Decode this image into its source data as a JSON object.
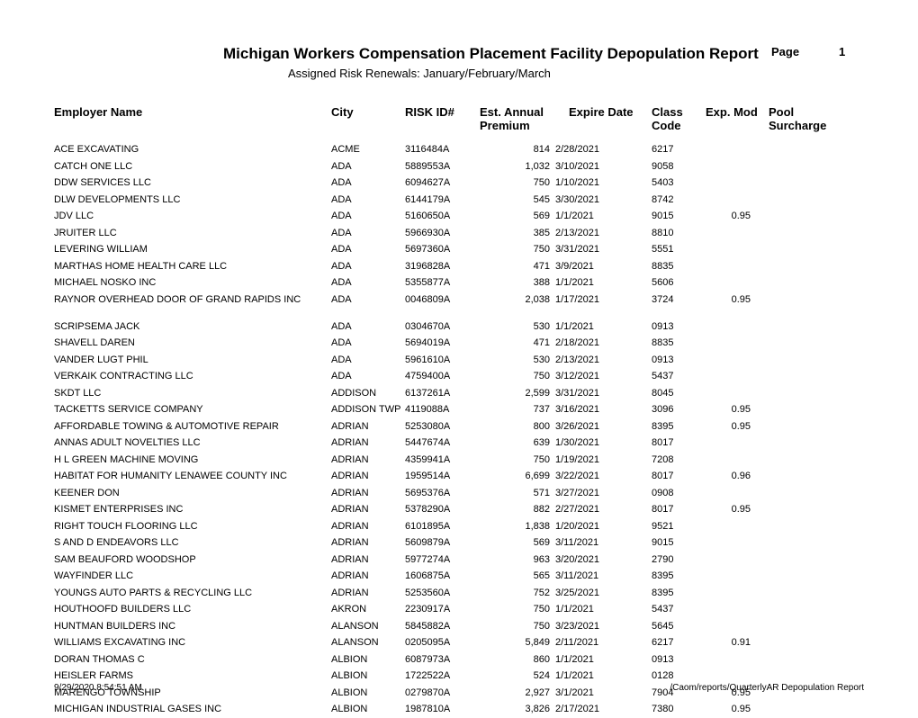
{
  "report": {
    "title": "Michigan Workers Compensation Placement Facility Depopulation Report",
    "subtitle": "Assigned Risk Renewals:  January/February/March",
    "page_label": "Page",
    "page_number": "1"
  },
  "columns": {
    "employer": "Employer Name",
    "city": "City",
    "riskid": "RISK ID#",
    "premium_l1": "Est. Annual",
    "premium_l2": "Premium",
    "expire": "Expire Date",
    "class_l1": "Class",
    "class_l2": "Code",
    "expmod": "Exp. Mod",
    "pool_l1": "Pool",
    "pool_l2": "Surcharge"
  },
  "rows": [
    {
      "employer": "ACE EXCAVATING",
      "city": "ACME",
      "riskid": "3116484A",
      "premium": "814",
      "expire": "2/28/2021",
      "class": "6217",
      "expmod": "",
      "pool": ""
    },
    {
      "employer": "CATCH ONE LLC",
      "city": "ADA",
      "riskid": "5889553A",
      "premium": "1,032",
      "expire": "3/10/2021",
      "class": "9058",
      "expmod": "",
      "pool": ""
    },
    {
      "employer": "DDW SERVICES LLC",
      "city": "ADA",
      "riskid": "6094627A",
      "premium": "750",
      "expire": "1/10/2021",
      "class": "5403",
      "expmod": "",
      "pool": ""
    },
    {
      "employer": "DLW DEVELOPMENTS LLC",
      "city": "ADA",
      "riskid": "6144179A",
      "premium": "545",
      "expire": "3/30/2021",
      "class": "8742",
      "expmod": "",
      "pool": ""
    },
    {
      "employer": "JDV LLC",
      "city": "ADA",
      "riskid": "5160650A",
      "premium": "569",
      "expire": "1/1/2021",
      "class": "9015",
      "expmod": "0.95",
      "pool": ""
    },
    {
      "employer": "JRUITER LLC",
      "city": "ADA",
      "riskid": "5966930A",
      "premium": "385",
      "expire": "2/13/2021",
      "class": "8810",
      "expmod": "",
      "pool": ""
    },
    {
      "employer": "LEVERING WILLIAM",
      "city": "ADA",
      "riskid": "5697360A",
      "premium": "750",
      "expire": "3/31/2021",
      "class": "5551",
      "expmod": "",
      "pool": ""
    },
    {
      "employer": "MARTHAS HOME HEALTH CARE LLC",
      "city": "ADA",
      "riskid": "3196828A",
      "premium": "471",
      "expire": "3/9/2021",
      "class": "8835",
      "expmod": "",
      "pool": ""
    },
    {
      "employer": "MICHAEL NOSKO INC",
      "city": "ADA",
      "riskid": "5355877A",
      "premium": "388",
      "expire": "1/1/2021",
      "class": "5606",
      "expmod": "",
      "pool": ""
    },
    {
      "employer": "RAYNOR OVERHEAD DOOR OF GRAND RAPIDS INC",
      "city": "ADA",
      "riskid": "0046809A",
      "premium": "2,038",
      "expire": "1/17/2021",
      "class": "3724",
      "expmod": "0.95",
      "pool": "",
      "tall": true
    },
    {
      "employer": "SCRIPSEMA JACK",
      "city": "ADA",
      "riskid": "0304670A",
      "premium": "530",
      "expire": "1/1/2021",
      "class": "0913",
      "expmod": "",
      "pool": ""
    },
    {
      "employer": "SHAVELL DAREN",
      "city": "ADA",
      "riskid": "5694019A",
      "premium": "471",
      "expire": "2/18/2021",
      "class": "8835",
      "expmod": "",
      "pool": ""
    },
    {
      "employer": "VANDER LUGT PHIL",
      "city": "ADA",
      "riskid": "5961610A",
      "premium": "530",
      "expire": "2/13/2021",
      "class": "0913",
      "expmod": "",
      "pool": ""
    },
    {
      "employer": "VERKAIK CONTRACTING LLC",
      "city": "ADA",
      "riskid": "4759400A",
      "premium": "750",
      "expire": "3/12/2021",
      "class": "5437",
      "expmod": "",
      "pool": ""
    },
    {
      "employer": "SKDT LLC",
      "city": "ADDISON",
      "riskid": "6137261A",
      "premium": "2,599",
      "expire": "3/31/2021",
      "class": "8045",
      "expmod": "",
      "pool": ""
    },
    {
      "employer": "TACKETTS SERVICE COMPANY",
      "city": "ADDISON TWP",
      "riskid": "4119088A",
      "premium": "737",
      "expire": "3/16/2021",
      "class": "3096",
      "expmod": "0.95",
      "pool": ""
    },
    {
      "employer": "AFFORDABLE TOWING & AUTOMOTIVE REPAIR",
      "city": "ADRIAN",
      "riskid": "5253080A",
      "premium": "800",
      "expire": "3/26/2021",
      "class": "8395",
      "expmod": "0.95",
      "pool": ""
    },
    {
      "employer": "ANNAS ADULT NOVELTIES LLC",
      "city": "ADRIAN",
      "riskid": "5447674A",
      "premium": "639",
      "expire": "1/30/2021",
      "class": "8017",
      "expmod": "",
      "pool": ""
    },
    {
      "employer": "H L GREEN MACHINE MOVING",
      "city": "ADRIAN",
      "riskid": "4359941A",
      "premium": "750",
      "expire": "1/19/2021",
      "class": "7208",
      "expmod": "",
      "pool": ""
    },
    {
      "employer": "HABITAT FOR HUMANITY LENAWEE COUNTY INC",
      "city": "ADRIAN",
      "riskid": "1959514A",
      "premium": "6,699",
      "expire": "3/22/2021",
      "class": "8017",
      "expmod": "0.96",
      "pool": ""
    },
    {
      "employer": "KEENER DON",
      "city": "ADRIAN",
      "riskid": "5695376A",
      "premium": "571",
      "expire": "3/27/2021",
      "class": "0908",
      "expmod": "",
      "pool": ""
    },
    {
      "employer": "KISMET ENTERPRISES INC",
      "city": "ADRIAN",
      "riskid": "5378290A",
      "premium": "882",
      "expire": "2/27/2021",
      "class": "8017",
      "expmod": "0.95",
      "pool": ""
    },
    {
      "employer": "RIGHT TOUCH FLOORING LLC",
      "city": "ADRIAN",
      "riskid": "6101895A",
      "premium": "1,838",
      "expire": "1/20/2021",
      "class": "9521",
      "expmod": "",
      "pool": ""
    },
    {
      "employer": "S AND D ENDEAVORS LLC",
      "city": "ADRIAN",
      "riskid": "5609879A",
      "premium": "569",
      "expire": "3/11/2021",
      "class": "9015",
      "expmod": "",
      "pool": ""
    },
    {
      "employer": "SAM BEAUFORD WOODSHOP",
      "city": "ADRIAN",
      "riskid": "5977274A",
      "premium": "963",
      "expire": "3/20/2021",
      "class": "2790",
      "expmod": "",
      "pool": ""
    },
    {
      "employer": "WAYFINDER LLC",
      "city": "ADRIAN",
      "riskid": "1606875A",
      "premium": "565",
      "expire": "3/11/2021",
      "class": "8395",
      "expmod": "",
      "pool": ""
    },
    {
      "employer": "YOUNGS AUTO PARTS & RECYCLING LLC",
      "city": "ADRIAN",
      "riskid": "5253560A",
      "premium": "752",
      "expire": "3/25/2021",
      "class": "8395",
      "expmod": "",
      "pool": ""
    },
    {
      "employer": "HOUTHOOFD BUILDERS LLC",
      "city": "AKRON",
      "riskid": "2230917A",
      "premium": "750",
      "expire": "1/1/2021",
      "class": "5437",
      "expmod": "",
      "pool": ""
    },
    {
      "employer": "HUNTMAN BUILDERS INC",
      "city": "ALANSON",
      "riskid": "5845882A",
      "premium": "750",
      "expire": "3/23/2021",
      "class": "5645",
      "expmod": "",
      "pool": ""
    },
    {
      "employer": "WILLIAMS EXCAVATING INC",
      "city": "ALANSON",
      "riskid": "0205095A",
      "premium": "5,849",
      "expire": "2/11/2021",
      "class": "6217",
      "expmod": "0.91",
      "pool": ""
    },
    {
      "employer": "DORAN THOMAS C",
      "city": "ALBION",
      "riskid": "6087973A",
      "premium": "860",
      "expire": "1/1/2021",
      "class": "0913",
      "expmod": "",
      "pool": ""
    },
    {
      "employer": "HEISLER FARMS",
      "city": "ALBION",
      "riskid": "1722522A",
      "premium": "524",
      "expire": "1/1/2021",
      "class": "0128",
      "expmod": "",
      "pool": ""
    },
    {
      "employer": "MARENGO TOWNSHIP",
      "city": "ALBION",
      "riskid": "0279870A",
      "premium": "2,927",
      "expire": "3/1/2021",
      "class": "7904",
      "expmod": "0.95",
      "pool": ""
    },
    {
      "employer": "MICHIGAN INDUSTRIAL GASES INC",
      "city": "ALBION",
      "riskid": "1987810A",
      "premium": "3,826",
      "expire": "2/17/2021",
      "class": "7380",
      "expmod": "0.95",
      "pool": ""
    }
  ],
  "footer": {
    "left": "9/29/2020 8:54:51 AM",
    "right": "/Caom/reports/QuarterlyAR Depopulation Report"
  },
  "style": {
    "background": "#ffffff",
    "text_color": "#000000",
    "title_fontsize": 17,
    "header_fontsize": 13,
    "body_fontsize": 11,
    "footer_fontsize": 10
  }
}
